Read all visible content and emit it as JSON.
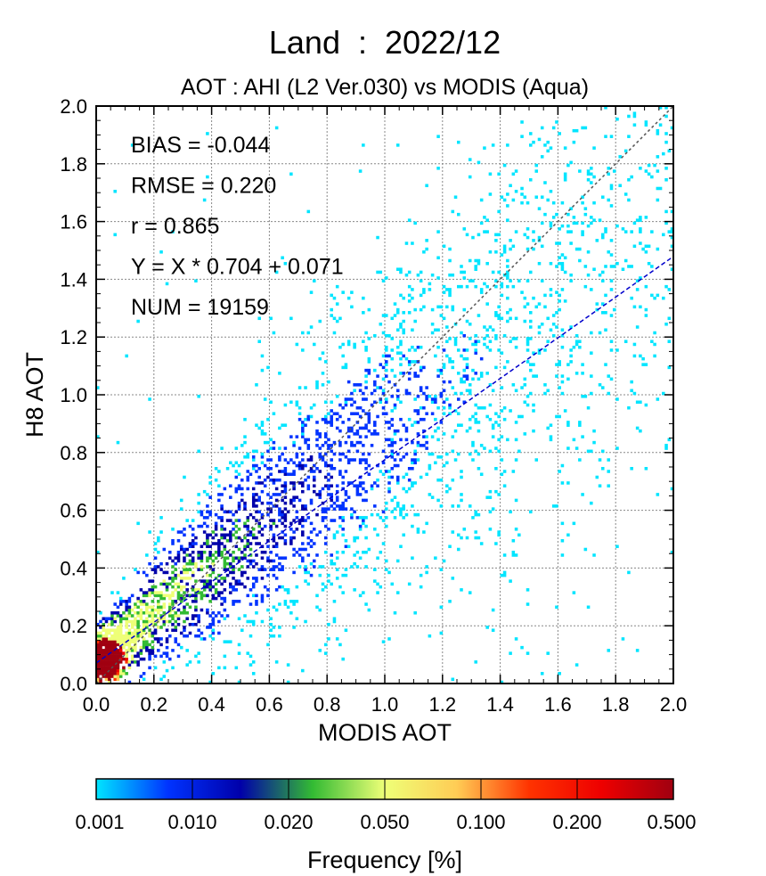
{
  "chart_data": {
    "type": "heatmap",
    "title": "Land  :  2022/12",
    "subtitle": "AOT : AHI (L2 Ver.030) vs MODIS (Aqua)",
    "xlabel": "MODIS AOT",
    "ylabel": "H8 AOT",
    "xlim": [
      0.0,
      2.0
    ],
    "ylim": [
      0.0,
      2.0
    ],
    "x_ticks": [
      "0.0",
      "0.2",
      "0.4",
      "0.6",
      "0.8",
      "1.0",
      "1.2",
      "1.4",
      "1.6",
      "1.8",
      "2.0"
    ],
    "y_ticks": [
      "0.0",
      "0.2",
      "0.4",
      "0.6",
      "0.8",
      "1.0",
      "1.2",
      "1.4",
      "1.6",
      "1.8",
      "2.0"
    ],
    "grid": true,
    "statistics": [
      "BIAS = -0.044",
      "RMSE = 0.220",
      "r = 0.865",
      "Y = X * 0.704 + 0.071",
      "NUM = 19159"
    ],
    "regression": {
      "slope": 0.704,
      "intercept": 0.071,
      "color": "#0000cc"
    },
    "one_to_one_line": {
      "color": "#555555"
    },
    "bin_size": 0.01,
    "density_model": {
      "description_hidden": false,
      "core": {
        "x": 0.03,
        "y": 0.07
      }
    },
    "colorbar": {
      "label": "Frequency [%]",
      "tick_labels": [
        "0.001",
        "0.010",
        "0.020",
        "0.050",
        "0.100",
        "0.200",
        "0.500"
      ],
      "colors": [
        "#00e5ff",
        "#0033ff",
        "#0000aa",
        "#33bb33",
        "#eeff77",
        "#ffcc55",
        "#ff3300",
        "#ee0000",
        "#a00010"
      ]
    }
  }
}
